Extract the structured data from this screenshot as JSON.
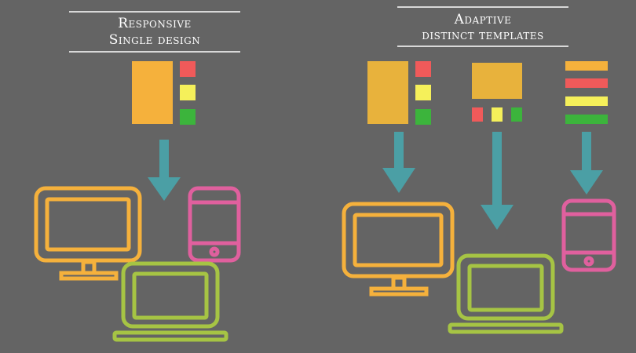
{
  "responsive": {
    "title_line1": "Responsive",
    "title_line2": "Single design"
  },
  "adaptive": {
    "title_line1": "Adaptive",
    "title_line2": "distinct templates"
  },
  "colors": {
    "background": "#646464",
    "orange": "#f5b13c",
    "red": "#f05a5a",
    "yellow": "#f5f05a",
    "green": "#3cb43c",
    "teal_arrow": "#4b9fa5",
    "lime_laptop": "#a6c444",
    "pink_phone": "#e0609e",
    "rule": "#d8d8d8"
  }
}
